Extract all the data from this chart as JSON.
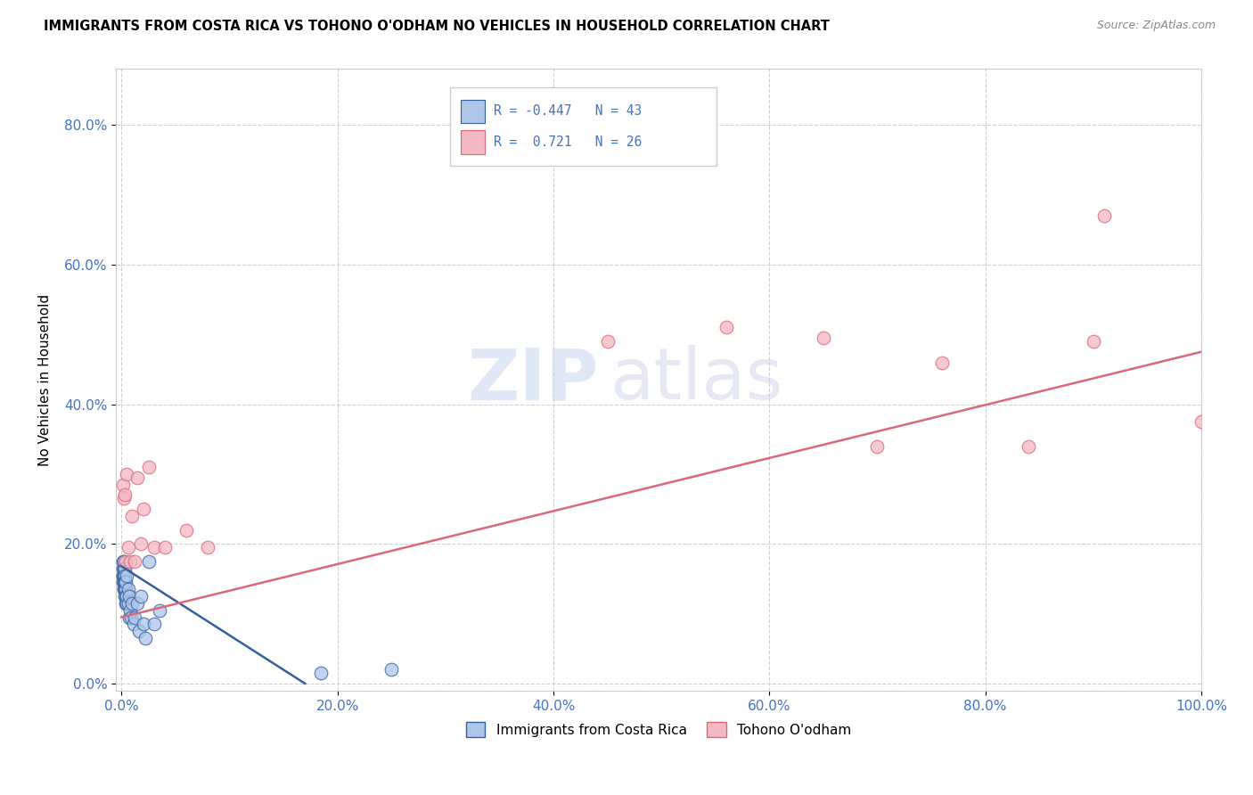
{
  "title": "IMMIGRANTS FROM COSTA RICA VS TOHONO O'ODHAM NO VEHICLES IN HOUSEHOLD CORRELATION CHART",
  "source": "Source: ZipAtlas.com",
  "ylabel": "No Vehicles in Household",
  "xlim": [
    -0.005,
    1.0
  ],
  "ylim": [
    -0.01,
    0.88
  ],
  "xticks": [
    0.0,
    0.2,
    0.4,
    0.6,
    0.8,
    1.0
  ],
  "yticks": [
    0.0,
    0.2,
    0.4,
    0.6,
    0.8
  ],
  "xtick_labels": [
    "0.0%",
    "20.0%",
    "40.0%",
    "60.0%",
    "80.0%",
    "100.0%"
  ],
  "ytick_labels": [
    "0.0%",
    "20.0%",
    "40.0%",
    "60.0%",
    "80.0%"
  ],
  "blue_r": "-0.447",
  "blue_n": "43",
  "pink_r": "0.721",
  "pink_n": "26",
  "blue_color": "#aec6e8",
  "pink_color": "#f4b8c1",
  "blue_line_color": "#3560a0",
  "pink_line_color": "#d9697a",
  "watermark_zip": "ZIP",
  "watermark_atlas": "atlas",
  "legend_label_blue": "Immigrants from Costa Rica",
  "legend_label_pink": "Tohono O'odham",
  "blue_x": [
    0.001,
    0.001,
    0.001,
    0.001,
    0.001,
    0.002,
    0.002,
    0.002,
    0.002,
    0.002,
    0.002,
    0.003,
    0.003,
    0.003,
    0.003,
    0.003,
    0.003,
    0.004,
    0.004,
    0.004,
    0.004,
    0.005,
    0.005,
    0.005,
    0.006,
    0.006,
    0.007,
    0.007,
    0.008,
    0.009,
    0.01,
    0.011,
    0.012,
    0.015,
    0.016,
    0.018,
    0.02,
    0.022,
    0.025,
    0.03,
    0.035,
    0.185,
    0.25
  ],
  "blue_y": [
    0.155,
    0.165,
    0.175,
    0.155,
    0.145,
    0.165,
    0.155,
    0.145,
    0.135,
    0.175,
    0.135,
    0.165,
    0.145,
    0.135,
    0.155,
    0.125,
    0.145,
    0.135,
    0.125,
    0.115,
    0.145,
    0.155,
    0.115,
    0.125,
    0.115,
    0.135,
    0.125,
    0.095,
    0.105,
    0.095,
    0.115,
    0.085,
    0.095,
    0.115,
    0.075,
    0.125,
    0.085,
    0.065,
    0.175,
    0.085,
    0.105,
    0.015,
    0.02
  ],
  "pink_x": [
    0.001,
    0.002,
    0.003,
    0.004,
    0.005,
    0.006,
    0.008,
    0.01,
    0.012,
    0.015,
    0.018,
    0.02,
    0.025,
    0.03,
    0.04,
    0.06,
    0.08,
    0.45,
    0.56,
    0.65,
    0.7,
    0.76,
    0.84,
    0.9,
    0.91,
    1.0
  ],
  "pink_y": [
    0.285,
    0.265,
    0.27,
    0.175,
    0.3,
    0.195,
    0.175,
    0.24,
    0.175,
    0.295,
    0.2,
    0.25,
    0.31,
    0.195,
    0.195,
    0.22,
    0.195,
    0.49,
    0.51,
    0.495,
    0.34,
    0.46,
    0.34,
    0.49,
    0.67,
    0.375
  ]
}
